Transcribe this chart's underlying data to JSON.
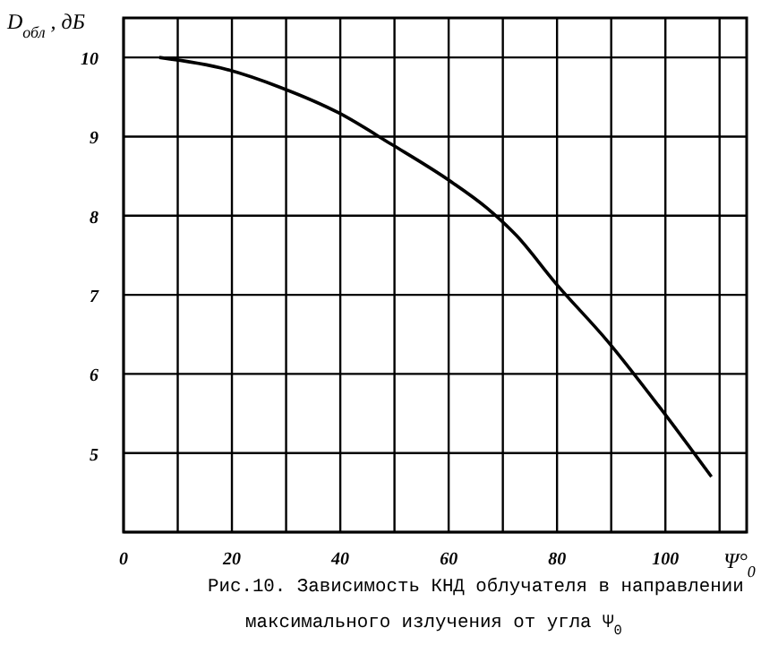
{
  "chart_data": {
    "type": "line",
    "ylabel": "D$_{обл}$ , дБ",
    "xlabel": "Ψ°$_{0}$",
    "annotations": [
      "Рис.10. Зависимость КНД облучателя в направлении максимального излучения от угла Ψ$_{0}$"
    ],
    "x": [
      6.6,
      19,
      29,
      39.7,
      49.5,
      60,
      67,
      72.5,
      79.7,
      89.5,
      98.7,
      108.5
    ],
    "series": [
      {
        "color": "#000000",
        "values": [
          10,
          9.85,
          9.62,
          9.3,
          8.9,
          8.45,
          8.1,
          7.75,
          7.15,
          6.4,
          5.6,
          4.7
        ]
      }
    ],
    "xlim": [
      0,
      115
    ],
    "xticks": [
      0,
      {
        "value": 10,
        "label": null
      },
      20,
      {
        "value": 30,
        "label": null
      },
      40,
      {
        "value": 50,
        "label": null
      },
      60,
      {
        "value": 70,
        "label": null
      },
      80,
      {
        "value": 90,
        "label": null
      },
      100,
      {
        "value": 110,
        "label": null
      }
    ],
    "ylim": [
      4,
      10.5
    ],
    "yticks": [
      {
        "value": 4,
        "label": null
      },
      5,
      6,
      7,
      8,
      9,
      10
    ],
    "grid": true,
    "marker": "none",
    "line_style": "solid"
  }
}
